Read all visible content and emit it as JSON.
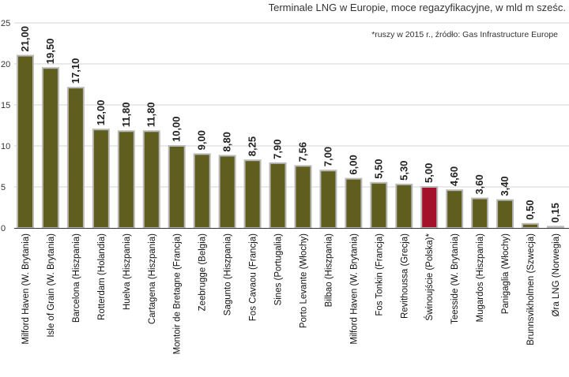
{
  "chart_data": {
    "type": "bar",
    "title": "Terminale LNG w Europie, moce regazyfikacyjne, w mld m sześc.",
    "note": "*ruszy w 2015 r., źródło: Gas Infrastructure Europe",
    "xlabel": "",
    "ylabel": "",
    "ylim": [
      0,
      25
    ],
    "yticks": [
      0,
      5,
      10,
      15,
      20,
      25
    ],
    "grid": true,
    "categories": [
      "Milford Haven (W. Brytania)",
      "Isle of Grain (W. Brytania)",
      "Barcelona (Hiszpania)",
      "Rotterdam (Holandia)",
      "Huelva (Hiszpania)",
      "Cartagena (Hiszpania)",
      "Montoir de Bretagne (Francja)",
      "Zeebrugge (Belgia)",
      "Sagunto (Hiszpania)",
      "Fos Cavaou (Francja)",
      "Sines (Portugalia)",
      "Porto Levante (Włochy)",
      "Bilbao (Hiszpania)",
      "Milford Haven (W. Brytania)",
      "Fos Tonkin (Francja)",
      "Revithoussa (Grecja)",
      "Świnoujście (Polska)*",
      "Teesside (W. Brytania)",
      "Mugardos (Hiszpania)",
      "Panigaglia (Włochy)",
      "Brunnsvikholmen (Szwecja)",
      "Øra LNG (Norwegia)"
    ],
    "values": [
      21.0,
      19.5,
      17.1,
      12.0,
      11.8,
      11.8,
      10.0,
      9.0,
      8.8,
      8.25,
      7.9,
      7.56,
      7.0,
      6.0,
      5.5,
      5.3,
      5.0,
      4.6,
      3.6,
      3.4,
      0.5,
      0.15
    ],
    "value_labels": [
      "21,00",
      "19,50",
      "17,10",
      "12,00",
      "11,80",
      "11,80",
      "10,00",
      "9,00",
      "8,80",
      "8,25",
      "7,90",
      "7,56",
      "7,00",
      "6,00",
      "5,50",
      "5,30",
      "5,00",
      "4,60",
      "3,60",
      "3,40",
      "0,50",
      "0,15"
    ],
    "highlight_index": 16,
    "colors": {
      "bar": "#5f5e1f",
      "bar_highlight": "#a3122a",
      "bar_outline": "#b9b9b9"
    }
  }
}
